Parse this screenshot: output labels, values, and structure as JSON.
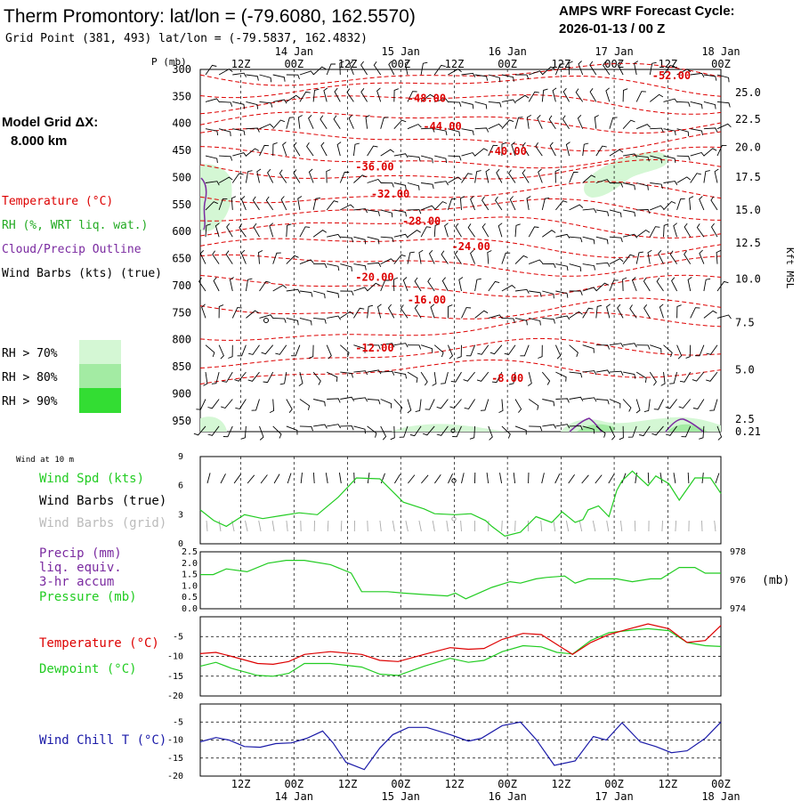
{
  "header": {
    "title": "Therm Promontory:  lat/lon = (-79.6080, 162.5570)",
    "subtitle": "Grid Point (381, 493) lat/lon = (-79.5837, 162.4832)",
    "cycle_line1": "AMPS WRF Forecast Cycle:",
    "cycle_line2": "2026-01-13 / 00  Z"
  },
  "left_labels": {
    "model_grid": "Model Grid ΔX:",
    "model_grid_value": "8.000 km",
    "temperature": "Temperature (°C)",
    "rh": "RH (%, WRT liq. wat.)",
    "cloud": "Cloud/Precip Outline",
    "wind_barbs": "Wind Barbs (kts) (true)",
    "rh_legend": [
      "RH > 70%",
      "RH > 80%",
      "RH > 90%"
    ]
  },
  "colors": {
    "temperature": "#dd0000",
    "rh70": "#d4f7d4",
    "rh80": "#a3eba3",
    "rh90": "#33dd33",
    "dewpoint": "#22cc22",
    "cloud": "#7a2aa0",
    "windchill": "#1a1aa8",
    "grid_gray": "#9a9a9a"
  },
  "time_axis": {
    "top_hours": [
      "12Z",
      "00Z",
      "12Z",
      "00Z",
      "12Z",
      "00Z",
      "12Z",
      "00Z",
      "12Z",
      "00Z"
    ],
    "top_days": [
      "14 Jan",
      "15 Jan",
      "16 Jan",
      "17 Jan",
      "18 Jan"
    ],
    "bottom_hours": [
      "12Z",
      "00Z",
      "12Z",
      "00Z",
      "12Z",
      "00Z",
      "12Z",
      "00Z",
      "12Z",
      "00Z"
    ],
    "bottom_days": [
      "14 Jan",
      "15 Jan",
      "16 Jan",
      "17 Jan",
      "18 Jan"
    ]
  },
  "chart_data": [
    {
      "type": "line",
      "name": "cross-section",
      "ylabel": "P (mb)",
      "y2label": "Kft MSL",
      "pressure_levels": [
        "300",
        "350",
        "400",
        "450",
        "500",
        "550",
        "600",
        "650",
        "700",
        "750",
        "800",
        "850",
        "900",
        "950"
      ],
      "height_labels": [
        "25.0",
        "22.5",
        "20.0",
        "17.5",
        "15.0",
        "12.5",
        "10.0",
        "7.5",
        "5.0",
        "2.5",
        "0.21"
      ],
      "isotherm_labels": [
        {
          "label": "-52.00",
          "t": 0.905,
          "p": 318
        },
        {
          "label": "-48.00",
          "t": 0.435,
          "p": 360
        },
        {
          "label": "-44.00",
          "t": 0.465,
          "p": 412
        },
        {
          "label": "-40.00",
          "t": 0.59,
          "p": 458
        },
        {
          "label": "-36.00",
          "t": 0.335,
          "p": 487
        },
        {
          "label": "-32.00",
          "t": 0.365,
          "p": 537
        },
        {
          "label": "-28.00",
          "t": 0.425,
          "p": 587
        },
        {
          "label": "-24.00",
          "t": 0.52,
          "p": 634
        },
        {
          "label": "-20.00",
          "t": 0.335,
          "p": 691
        },
        {
          "label": "-16.00",
          "t": 0.435,
          "p": 733
        },
        {
          "label": "-12.00",
          "t": 0.335,
          "p": 822
        },
        {
          "label": "-8.00",
          "t": 0.59,
          "p": 878
        }
      ]
    },
    {
      "type": "line",
      "name": "wind-10m",
      "title": "Wind at 10 m",
      "series_labels": [
        "Wind Spd (kts)",
        "Wind Barbs (true)",
        "Wind Barbs (grid)"
      ],
      "y_ticks": [
        "9",
        "6",
        "3",
        "0"
      ],
      "ylim": [
        0,
        9
      ],
      "x": [
        0,
        0.026,
        0.05,
        0.085,
        0.12,
        0.155,
        0.19,
        0.225,
        0.265,
        0.3,
        0.345,
        0.39,
        0.43,
        0.45,
        0.49,
        0.52,
        0.548,
        0.56,
        0.585,
        0.615,
        0.645,
        0.675,
        0.695,
        0.72,
        0.735,
        0.745,
        0.765,
        0.785,
        0.8,
        0.81,
        0.83,
        0.86,
        0.875,
        0.9,
        0.92,
        0.95,
        0.98,
        1.0
      ],
      "values": [
        3.5,
        2.4,
        1.8,
        3.0,
        2.6,
        2.9,
        3.2,
        3.0,
        4.8,
        6.8,
        6.7,
        4.3,
        3.6,
        3.1,
        3.0,
        3.1,
        2.4,
        1.8,
        0.8,
        1.2,
        2.8,
        2.2,
        3.3,
        2.2,
        2.5,
        3.5,
        3.9,
        2.8,
        5.5,
        6.5,
        7.5,
        6.0,
        7.0,
        6.2,
        4.5,
        6.8,
        6.8,
        5.2
      ]
    },
    {
      "type": "line",
      "name": "precip-pressure",
      "series_labels": [
        "Precip (mm)",
        "liq. equiv.",
        "3-hr accum",
        "Pressure (mb)"
      ],
      "y_ticks": [
        "2.5",
        "2.0",
        "1.5",
        "1.0",
        "0.5",
        "0.0"
      ],
      "y2_ticks": [
        "978",
        "976",
        "974"
      ],
      "precip_ylim": [
        0,
        2.5
      ],
      "pressure_ylim": [
        974,
        978
      ],
      "x": [
        0,
        0.025,
        0.05,
        0.09,
        0.13,
        0.165,
        0.2,
        0.25,
        0.29,
        0.31,
        0.36,
        0.39,
        0.43,
        0.475,
        0.49,
        0.51,
        0.56,
        0.595,
        0.615,
        0.645,
        0.665,
        0.7,
        0.72,
        0.745,
        0.78,
        0.8,
        0.83,
        0.865,
        0.885,
        0.92,
        0.95,
        0.97,
        1.0
      ],
      "values": [
        976.4,
        976.4,
        976.8,
        976.6,
        977.2,
        977.4,
        977.4,
        977.1,
        976.5,
        975.2,
        975.2,
        975.1,
        975.0,
        974.9,
        975.1,
        974.7,
        975.5,
        975.9,
        975.8,
        976.1,
        976.2,
        976.3,
        975.8,
        976.1,
        976.1,
        976.1,
        975.9,
        976.1,
        976.1,
        976.9,
        976.9,
        976.5,
        976.5
      ]
    },
    {
      "type": "line",
      "name": "temperature-dewpoint",
      "series_labels": [
        "Temperature (°C)",
        "Dewpoint (°C)"
      ],
      "y_ticks": [
        "-5",
        "-10",
        "-15",
        "-20"
      ],
      "ylim": [
        -20,
        0
      ],
      "series": [
        {
          "name": "Temperature",
          "x": [
            0,
            0.03,
            0.06,
            0.11,
            0.14,
            0.17,
            0.2,
            0.25,
            0.31,
            0.345,
            0.38,
            0.43,
            0.48,
            0.515,
            0.545,
            0.58,
            0.62,
            0.655,
            0.685,
            0.715,
            0.75,
            0.785,
            0.82,
            0.86,
            0.9,
            0.935,
            0.97,
            1.0
          ],
          "values": [
            -9.3,
            -9.0,
            -10.0,
            -11.8,
            -12.0,
            -11.3,
            -9.5,
            -8.8,
            -9.5,
            -11.0,
            -11.3,
            -9.5,
            -7.8,
            -8.2,
            -8.0,
            -5.7,
            -4.2,
            -4.5,
            -7.0,
            -9.5,
            -6.5,
            -4.5,
            -3.2,
            -1.8,
            -3.0,
            -6.5,
            -6.0,
            -2.2
          ]
        },
        {
          "name": "Dewpoint",
          "x": [
            0,
            0.03,
            0.06,
            0.11,
            0.14,
            0.17,
            0.2,
            0.25,
            0.31,
            0.345,
            0.38,
            0.43,
            0.48,
            0.515,
            0.545,
            0.58,
            0.62,
            0.655,
            0.685,
            0.715,
            0.75,
            0.785,
            0.82,
            0.86,
            0.9,
            0.935,
            0.97,
            1.0
          ],
          "values": [
            -12.5,
            -11.5,
            -13.0,
            -14.8,
            -15.0,
            -14.3,
            -11.8,
            -11.8,
            -12.7,
            -14.5,
            -14.8,
            -12.5,
            -10.5,
            -11.5,
            -11.0,
            -8.8,
            -7.3,
            -7.6,
            -9.0,
            -9.4,
            -6.0,
            -4.0,
            -3.5,
            -3.0,
            -3.5,
            -6.5,
            -7.3,
            -7.5
          ]
        }
      ]
    },
    {
      "type": "line",
      "name": "wind-chill",
      "series_labels": [
        "Wind Chill T (°C)"
      ],
      "y_ticks": [
        "-5",
        "-10",
        "-15",
        "-20"
      ],
      "ylim": [
        -20,
        0
      ],
      "x": [
        0,
        0.03,
        0.055,
        0.085,
        0.115,
        0.145,
        0.175,
        0.205,
        0.235,
        0.255,
        0.28,
        0.315,
        0.345,
        0.37,
        0.4,
        0.435,
        0.48,
        0.515,
        0.54,
        0.58,
        0.615,
        0.645,
        0.68,
        0.72,
        0.755,
        0.78,
        0.81,
        0.845,
        0.875,
        0.905,
        0.935,
        0.97,
        1.0
      ],
      "values": [
        -10.5,
        -9.3,
        -10.0,
        -11.8,
        -12.0,
        -11.0,
        -10.8,
        -9.5,
        -7.5,
        -10.8,
        -16.2,
        -18.2,
        -12.2,
        -8.5,
        -6.5,
        -6.5,
        -8.5,
        -10.3,
        -9.5,
        -6.0,
        -5.0,
        -9.8,
        -17.0,
        -15.8,
        -9.0,
        -10.0,
        -5.2,
        -10.5,
        -11.8,
        -13.5,
        -13.0,
        -9.5,
        -5.0
      ]
    }
  ]
}
